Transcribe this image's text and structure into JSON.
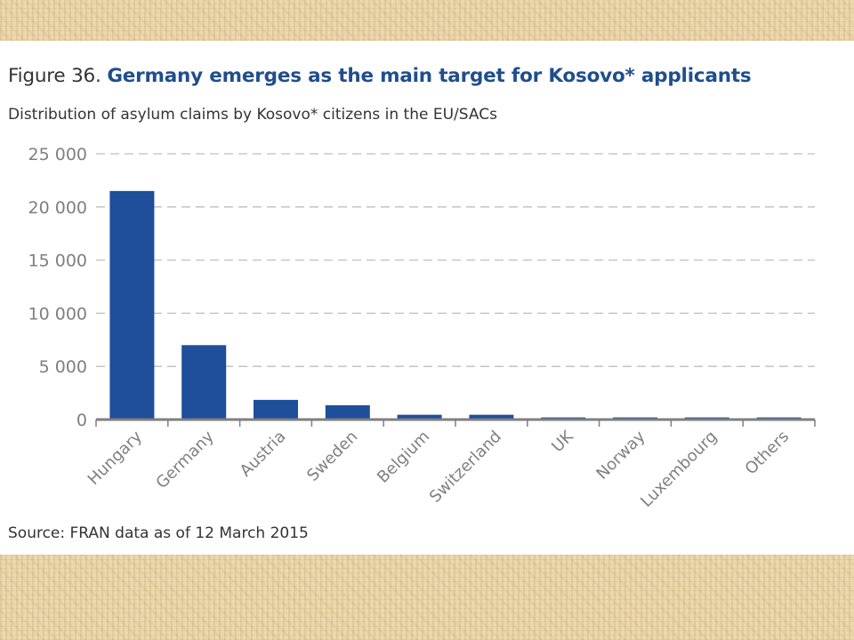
{
  "slide": {
    "figure_number": "Figure 36.",
    "figure_title": "Germany emerges as the main target for Kosovo* applicants",
    "subtitle": "Distribution of asylum claims by Kosovo* citizens in the EU/SACs",
    "source": "Source: FRAN data as of 12 March 2015"
  },
  "chart_data": {
    "type": "bar",
    "categories": [
      "Hungary",
      "Germany",
      "Austria",
      "Sweden",
      "Belgium",
      "Switzerland",
      "UK",
      "Norway",
      "Luxembourg",
      "Others"
    ],
    "values": [
      21500,
      7000,
      1850,
      1350,
      450,
      450,
      200,
      200,
      200,
      200
    ],
    "ylim": [
      0,
      25000
    ],
    "yticks": [
      0,
      5000,
      10000,
      15000,
      20000,
      25000
    ],
    "ytick_labels": [
      "0",
      "5 000",
      "10 000",
      "15 000",
      "20 000",
      "25 000"
    ],
    "xlabel": "",
    "ylabel": "",
    "grid": "horizontal dashed",
    "legend": "none",
    "bar_color": "#1f4e9a"
  },
  "colors": {
    "title_accent": "#1f4e8c",
    "text": "#333333",
    "axis_labels": "#7f7f7f",
    "grid": "#bfbfbf",
    "baseline": "#7f7f7f"
  }
}
